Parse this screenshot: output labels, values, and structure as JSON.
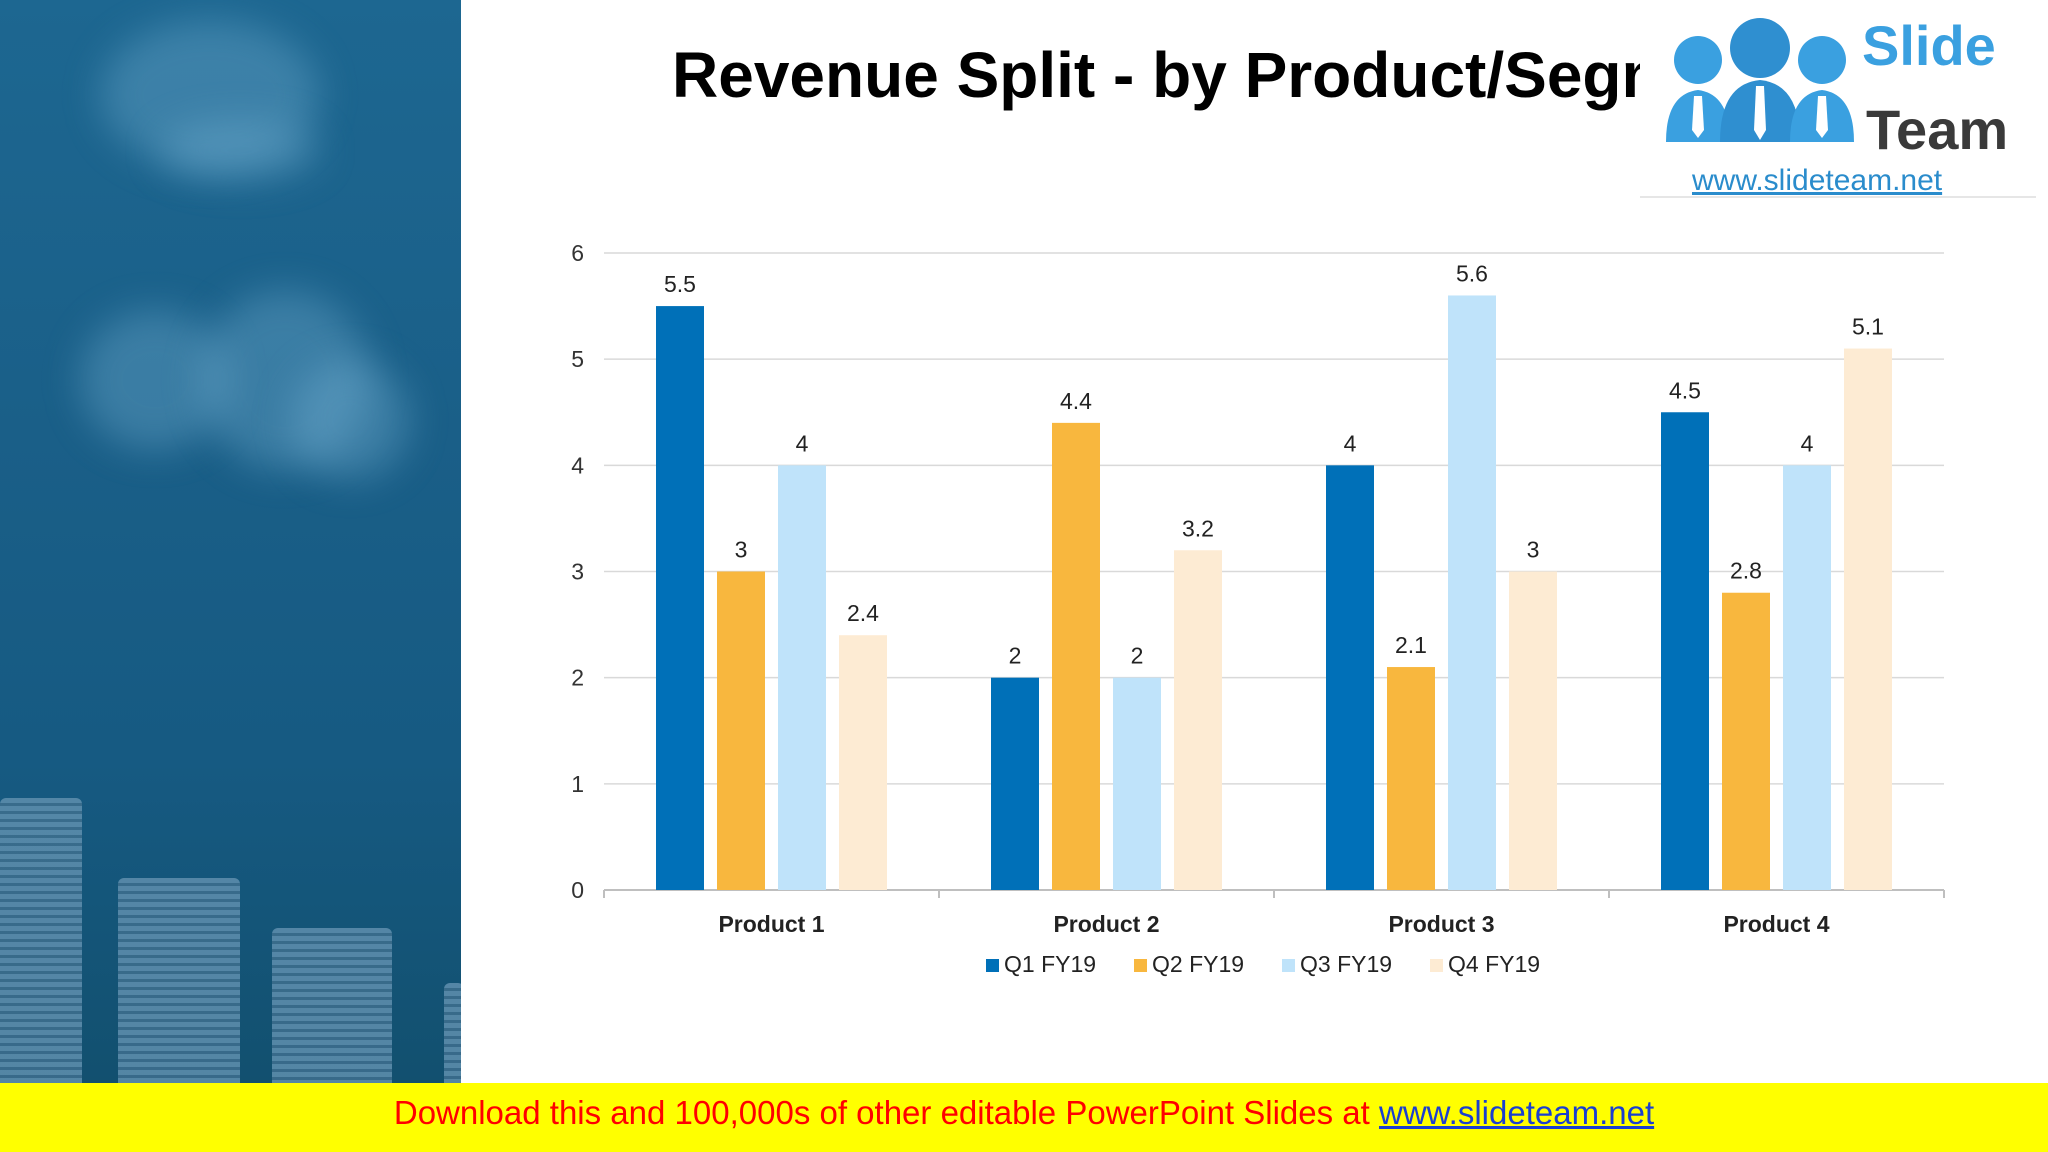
{
  "title": "Revenue Split - by Product/Segment",
  "logo": {
    "line1": "Slide",
    "line2": "Team",
    "url": "www.slideteam.net"
  },
  "footer": {
    "text": "Download this and 100,000s of other editable PowerPoint Slides at",
    "link": "www.slideteam.net"
  },
  "chart_data": {
    "type": "bar",
    "categories": [
      "Product 1",
      "Product 2",
      "Product 3",
      "Product 4"
    ],
    "series": [
      {
        "name": "Q1 FY19",
        "color": "#0070b8",
        "values": [
          5.5,
          2,
          4,
          4.5
        ]
      },
      {
        "name": "Q2 FY19",
        "color": "#f8b73e",
        "values": [
          3,
          4.4,
          2.1,
          2.8
        ]
      },
      {
        "name": "Q3 FY19",
        "color": "#bfe3fa",
        "values": [
          4,
          2,
          5.6,
          4
        ]
      },
      {
        "name": "Q4 FY19",
        "color": "#fdebd3",
        "values": [
          2.4,
          3.2,
          3,
          5.1
        ]
      }
    ],
    "ylim": [
      0,
      6
    ],
    "yticks": [
      0,
      1,
      2,
      3,
      4,
      5,
      6
    ],
    "grid": true,
    "legend": "bottom",
    "data_labels": true
  }
}
